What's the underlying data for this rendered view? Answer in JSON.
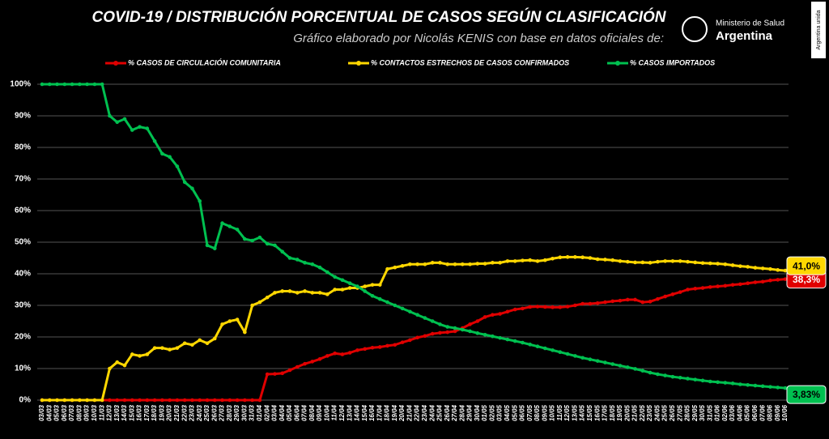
{
  "chart_data": {
    "type": "line",
    "title": "COVID-19  /  DISTRIBUCIÓN PORCENTUAL DE CASOS SEGÚN CLASIFICACIÓN",
    "subtitle": "Gráfico elaborado por Nicolás KENIS con base en datos oficiales de:",
    "logo": {
      "line1": "Ministerio de Salud",
      "line2": "Argentina",
      "side": "Argentina unida"
    },
    "categories": [
      "03/03",
      "04/03",
      "05/03",
      "06/03",
      "07/03",
      "08/03",
      "09/03",
      "10/03",
      "11/03",
      "12/03",
      "13/03",
      "14/03",
      "15/03",
      "16/03",
      "17/03",
      "18/03",
      "19/03",
      "20/03",
      "21/03",
      "22/03",
      "23/03",
      "24/03",
      "25/03",
      "26/03",
      "27/03",
      "28/03",
      "29/03",
      "30/03",
      "31/03",
      "01/04",
      "02/04",
      "03/04",
      "04/04",
      "05/04",
      "06/04",
      "07/04",
      "08/04",
      "09/04",
      "10/04",
      "11/04",
      "12/04",
      "13/04",
      "14/04",
      "15/04",
      "16/04",
      "17/04",
      "18/04",
      "19/04",
      "20/04",
      "21/04",
      "22/04",
      "23/04",
      "24/04",
      "25/04",
      "26/04",
      "27/04",
      "28/04",
      "29/04",
      "30/04",
      "01/05",
      "02/05",
      "03/05",
      "04/05",
      "05/05",
      "06/05",
      "07/05",
      "08/05",
      "09/05",
      "10/05",
      "11/05",
      "12/05",
      "13/05",
      "14/05",
      "15/05",
      "16/05",
      "17/05",
      "18/05",
      "19/05",
      "20/05",
      "21/05",
      "22/05",
      "23/05",
      "24/05",
      "25/05",
      "26/05",
      "27/05",
      "28/05",
      "29/05",
      "30/05",
      "31/05",
      "01/06",
      "02/06",
      "03/06",
      "04/06",
      "05/06",
      "06/06",
      "07/06",
      "08/06",
      "09/06",
      "10/06"
    ],
    "series": [
      {
        "name": "% CASOS DE CIRCULACIÓN COMUNITARIA",
        "color": "#e00000",
        "last_value_label": "38,3%",
        "values": [
          0,
          0,
          0,
          0,
          0,
          0,
          0,
          0,
          0,
          0,
          0,
          0,
          0,
          0,
          0,
          0,
          0,
          0,
          0,
          0,
          0,
          0,
          0,
          0,
          0,
          0,
          0,
          0,
          0,
          0,
          8.2,
          8.3,
          8.5,
          9.5,
          10.5,
          11.5,
          12.2,
          13,
          14,
          14.8,
          14.5,
          15,
          15.8,
          16.2,
          16.6,
          16.8,
          17.2,
          17.5,
          18.3,
          19,
          19.8,
          20.3,
          21,
          21.3,
          21.5,
          21.8,
          22.8,
          24,
          25,
          26.3,
          27,
          27.3,
          28,
          28.7,
          29,
          29.5,
          29.6,
          29.5,
          29.4,
          29.4,
          29.6,
          30,
          30.5,
          30.5,
          30.7,
          31,
          31.3,
          31.5,
          31.8,
          31.8,
          31,
          31.2,
          32,
          32.8,
          33.5,
          34.2,
          35,
          35.3,
          35.5,
          35.8,
          36,
          36.2,
          36.5,
          36.7,
          37,
          37.3,
          37.5,
          37.9,
          38.1,
          38.3
        ]
      },
      {
        "name": "% CONTACTOS ESTRECHOS DE CASOS CONFIRMADOS",
        "color": "#ffd700",
        "last_value_label": "41,0%",
        "values": [
          0,
          0,
          0,
          0,
          0,
          0,
          0,
          0,
          0,
          10,
          12,
          11,
          14.5,
          14,
          14.5,
          16.5,
          16.5,
          16,
          16.5,
          18,
          17.5,
          19,
          18,
          19.5,
          24,
          25,
          25.5,
          21.5,
          30,
          31,
          32.5,
          34,
          34.5,
          34.5,
          34,
          34.5,
          34,
          34,
          33.5,
          35,
          35,
          35.5,
          35.5,
          36,
          36.5,
          36.5,
          41.5,
          42,
          42.5,
          43,
          43,
          43,
          43.5,
          43.5,
          43,
          43,
          43,
          43,
          43.2,
          43.2,
          43.5,
          43.5,
          44,
          44,
          44.2,
          44.3,
          44,
          44.3,
          44.8,
          45.2,
          45.3,
          45.3,
          45.2,
          45,
          44.6,
          44.5,
          44.3,
          44,
          43.8,
          43.6,
          43.6,
          43.5,
          43.8,
          44,
          44,
          44,
          43.8,
          43.6,
          43.4,
          43.3,
          43.2,
          43,
          42.7,
          42.4,
          42.2,
          41.9,
          41.7,
          41.5,
          41.2,
          41.0
        ]
      },
      {
        "name": "% CASOS IMPORTADOS",
        "color": "#00c050",
        "last_value_label": "3,83%",
        "values": [
          100,
          100,
          100,
          100,
          100,
          100,
          100,
          100,
          100,
          90,
          88,
          89,
          85.5,
          86.5,
          86,
          82,
          78,
          77,
          74,
          69,
          67,
          63,
          49,
          48,
          56,
          55,
          54,
          51,
          50.5,
          51.5,
          49.5,
          49,
          47,
          45,
          44.5,
          43.5,
          43,
          42,
          40.5,
          39,
          38,
          37,
          36,
          34.5,
          33,
          32,
          31,
          30,
          29,
          28,
          27,
          26,
          25,
          24,
          23.2,
          22.8,
          22.3,
          21.8,
          21.2,
          20.7,
          20.2,
          19.7,
          19.2,
          18.7,
          18.2,
          17.6,
          17,
          16.4,
          15.8,
          15.2,
          14.6,
          14,
          13.4,
          12.9,
          12.4,
          11.9,
          11.4,
          10.9,
          10.4,
          9.9,
          9.3,
          8.7,
          8.2,
          7.8,
          7.4,
          7.1,
          6.8,
          6.5,
          6.2,
          5.9,
          5.7,
          5.5,
          5.3,
          5.0,
          4.8,
          4.6,
          4.4,
          4.2,
          4.0,
          3.83
        ]
      }
    ],
    "ylim": [
      0,
      100
    ],
    "yticks": [
      {
        "value": 0,
        "label": "0%"
      },
      {
        "value": 10,
        "label": "10%"
      },
      {
        "value": 20,
        "label": "20%"
      },
      {
        "value": 30,
        "label": "30%"
      },
      {
        "value": 40,
        "label": "40%"
      },
      {
        "value": 50,
        "label": "50%"
      },
      {
        "value": 60,
        "label": "60%"
      },
      {
        "value": 70,
        "label": "70%"
      },
      {
        "value": 80,
        "label": "80%"
      },
      {
        "value": 90,
        "label": "90%"
      },
      {
        "value": 100,
        "label": "100%"
      }
    ],
    "grid": true,
    "legend": "top"
  }
}
